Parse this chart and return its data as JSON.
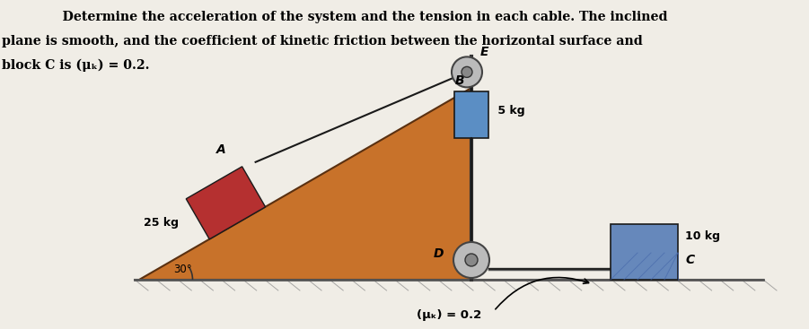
{
  "bg_color": "#f0ede6",
  "title_line1": "    Determine the acceleration of the system and the tension in each cable. The inclined",
  "title_line2": "plane is smooth, and the coefficient of kinetic friction between the horizontal surface and",
  "title_line3": "block C is (μₖ)⁣ = 0.2.",
  "title_fontsize": 10.2,
  "incline_color": "#c8722a",
  "incline_edge": "#5a3010",
  "block_A_color": "#b53030",
  "block_C_color": "#6688bb",
  "block_B_color": "#5b8ec4",
  "pulley_color": "#999999",
  "rope_color": "#1a1a1a",
  "ground_color": "#888888",
  "label_25kg": "25 kg",
  "label_5kg": " 5 kg",
  "label_10kg": "10 kg",
  "label_A": "A",
  "label_B": "B",
  "label_C": "C",
  "label_D": "D",
  "label_E": "E",
  "label_friction": "(μₖ)⁣ = 0.2",
  "label_angle": "30°"
}
